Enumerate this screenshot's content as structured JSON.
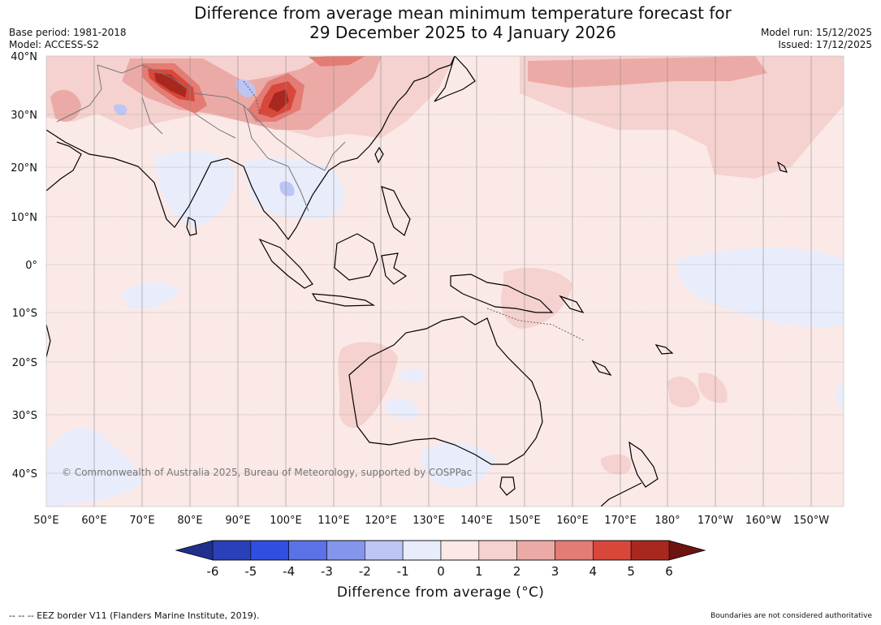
{
  "header": {
    "title_line1": "Difference from average mean minimum temperature forecast for",
    "title_line2": "29 December 2025 to 4 January 2026",
    "base_period": "Base period: 1981-2018",
    "model": "Model: ACCESS-S2",
    "model_run": "Model run: 15/12/2025",
    "issued": "Issued: 17/12/2025"
  },
  "map": {
    "lat_labels": [
      "40°N",
      "30°N",
      "20°N",
      "10°N",
      "0°",
      "10°S",
      "20°S",
      "30°S",
      "40°S"
    ],
    "lon_labels": [
      "50°E",
      "60°E",
      "70°E",
      "80°E",
      "90°E",
      "100°E",
      "110°E",
      "120°E",
      "130°E",
      "140°E",
      "150°E",
      "160°E",
      "170°E",
      "180°",
      "170°W",
      "160°W",
      "150°W"
    ],
    "copyright": "© Commonwealth of Australia 2025, Bureau of Meteorology, supported by COSPPac"
  },
  "legend": {
    "ticks": [
      "-6",
      "-5",
      "-4",
      "-3",
      "-2",
      "-1",
      "0",
      "1",
      "2",
      "3",
      "4",
      "5",
      "6"
    ],
    "colors": [
      "#1f2f8c",
      "#2a40b8",
      "#2f4fe0",
      "#5a72e6",
      "#8496ec",
      "#bcc5f4",
      "#e9ecfb",
      "#fce8e6",
      "#f5d2cf",
      "#ecaaa6",
      "#e37c74",
      "#d9473b",
      "#a8281f",
      "#6e1410"
    ],
    "label": "Difference from average (°C)"
  },
  "footer": {
    "eez_note": "--  --  -- EEZ border V11 (Flanders Marine Institute, 2019).",
    "boundaries_note": "Boundaries are not considered authoritative"
  }
}
